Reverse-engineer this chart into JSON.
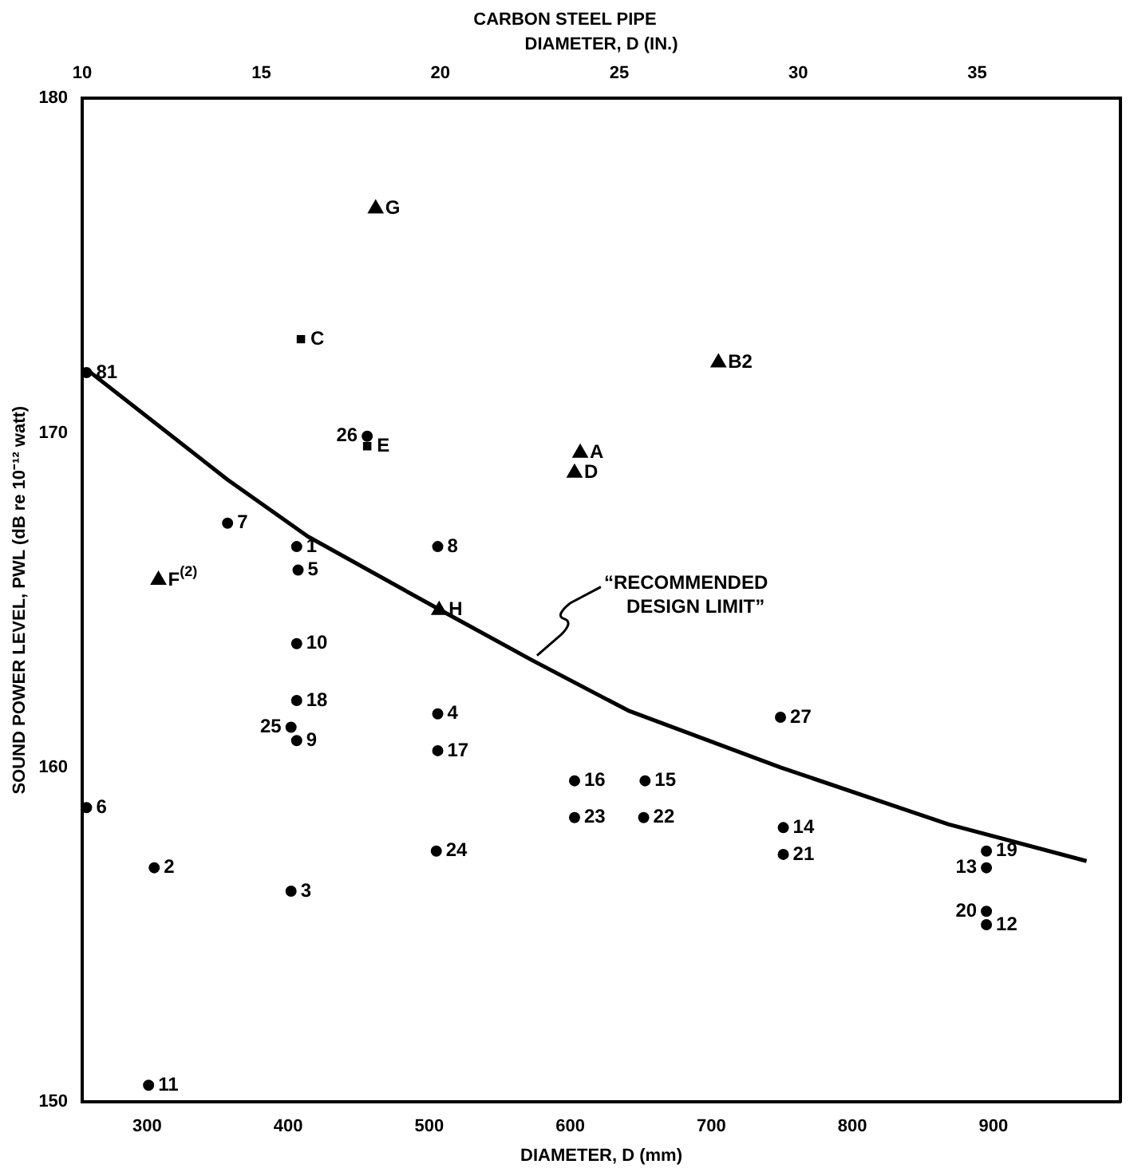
{
  "chart_data": {
    "type": "scatter",
    "title": "CARBON STEEL PIPE",
    "x2label": "DIAMETER, D (IN.)",
    "xlabel": "DIAMETER, D (mm)",
    "ylabel": "SOUND POWER LEVEL, PWL (dB re 10⁻¹² watt)",
    "xlim": [
      254,
      990
    ],
    "xticks": [
      300,
      400,
      500,
      600,
      700,
      800,
      900
    ],
    "x2lim": [
      10,
      39
    ],
    "x2ticks": [
      10,
      15,
      20,
      25,
      30,
      35
    ],
    "ylim": [
      150,
      180
    ],
    "yticks": [
      150,
      160,
      170,
      180
    ],
    "grid": false,
    "legend": false,
    "series": [
      {
        "type": "scatter",
        "marker": "circle",
        "color": "#000000",
        "x": [
          257,
          357,
          406,
          407,
          506,
          406,
          406,
          402,
          406,
          506,
          506,
          749,
          603,
          653,
          257,
          603,
          652,
          751,
          751,
          505,
          895,
          895,
          305,
          402,
          895,
          895,
          301,
          456
        ],
        "values": [
          171.8,
          167.3,
          166.6,
          165.9,
          166.6,
          163.7,
          162.0,
          161.2,
          160.8,
          161.6,
          160.5,
          161.5,
          159.6,
          159.6,
          158.8,
          158.5,
          158.5,
          158.2,
          157.4,
          157.5,
          157.5,
          157.0,
          157.0,
          156.3,
          155.7,
          155.3,
          150.5,
          169.9
        ]
      },
      {
        "type": "scatter",
        "marker": "triangle",
        "color": "#000000",
        "x": [
          462,
          705,
          607,
          603,
          308,
          507
        ],
        "values": [
          176.7,
          172.1,
          169.4,
          168.8,
          165.6,
          164.7
        ]
      },
      {
        "type": "scatter",
        "marker": "square",
        "color": "#000000",
        "x": [
          409,
          456
        ],
        "values": [
          172.8,
          169.6
        ]
      },
      {
        "type": "line",
        "marker": "none",
        "name": "“RECOMMENDED DESIGN LIMIT”",
        "color": "#000000",
        "x": [
          257,
          357,
          414,
          508,
          573,
          641,
          749,
          868,
          966
        ],
        "values": [
          171.9,
          168.6,
          166.9,
          164.7,
          163.2,
          161.7,
          160.0,
          158.3,
          157.2
        ]
      }
    ],
    "annotations": [
      {
        "text": "81",
        "x": 257,
        "y": 171.8
      },
      {
        "text": "G",
        "x": 462,
        "y": 176.7
      },
      {
        "text": "C",
        "x": 409,
        "y": 172.8
      },
      {
        "text": "B2",
        "x": 705,
        "y": 172.1
      },
      {
        "text": "E",
        "x": 456,
        "y": 169.6
      },
      {
        "text": "26",
        "x": 456,
        "y": 169.9
      },
      {
        "text": "A",
        "x": 607,
        "y": 169.4
      },
      {
        "text": "D",
        "x": 603,
        "y": 168.8
      },
      {
        "text": "7",
        "x": 357,
        "y": 167.3
      },
      {
        "text": "1",
        "x": 406,
        "y": 166.6
      },
      {
        "text": "5",
        "x": 407,
        "y": 165.9
      },
      {
        "text": "8",
        "x": 506,
        "y": 166.6
      },
      {
        "text": "F$^{(2)}$",
        "x": 308,
        "y": 165.6
      },
      {
        "text": "H",
        "x": 507,
        "y": 164.7
      },
      {
        "text": "10",
        "x": 406,
        "y": 163.7
      },
      {
        "text": "18",
        "x": 406,
        "y": 162.0
      },
      {
        "text": "9",
        "x": 406,
        "y": 160.8
      },
      {
        "text": "25",
        "x": 402,
        "y": 161.2
      },
      {
        "text": "4",
        "x": 506,
        "y": 161.6
      },
      {
        "text": "17",
        "x": 506,
        "y": 160.5
      },
      {
        "text": "27",
        "x": 749,
        "y": 161.5
      },
      {
        "text": "16",
        "x": 603,
        "y": 159.6
      },
      {
        "text": "15",
        "x": 653,
        "y": 159.6
      },
      {
        "text": "6",
        "x": 257,
        "y": 158.8
      },
      {
        "text": "23",
        "x": 603,
        "y": 158.5
      },
      {
        "text": "22",
        "x": 652,
        "y": 158.5
      },
      {
        "text": "14",
        "x": 751,
        "y": 158.2
      },
      {
        "text": "21",
        "x": 751,
        "y": 157.4
      },
      {
        "text": "24",
        "x": 505,
        "y": 157.5
      },
      {
        "text": "19",
        "x": 895,
        "y": 157.5
      },
      {
        "text": "13",
        "x": 895,
        "y": 157.0
      },
      {
        "text": "2",
        "x": 305,
        "y": 157.0
      },
      {
        "text": "3",
        "x": 402,
        "y": 156.3
      },
      {
        "text": "12",
        "x": 895,
        "y": 155.3
      },
      {
        "text": "20",
        "x": 895,
        "y": 155.7
      },
      {
        "text": "11",
        "x": 301,
        "y": 150.5
      }
    ]
  }
}
